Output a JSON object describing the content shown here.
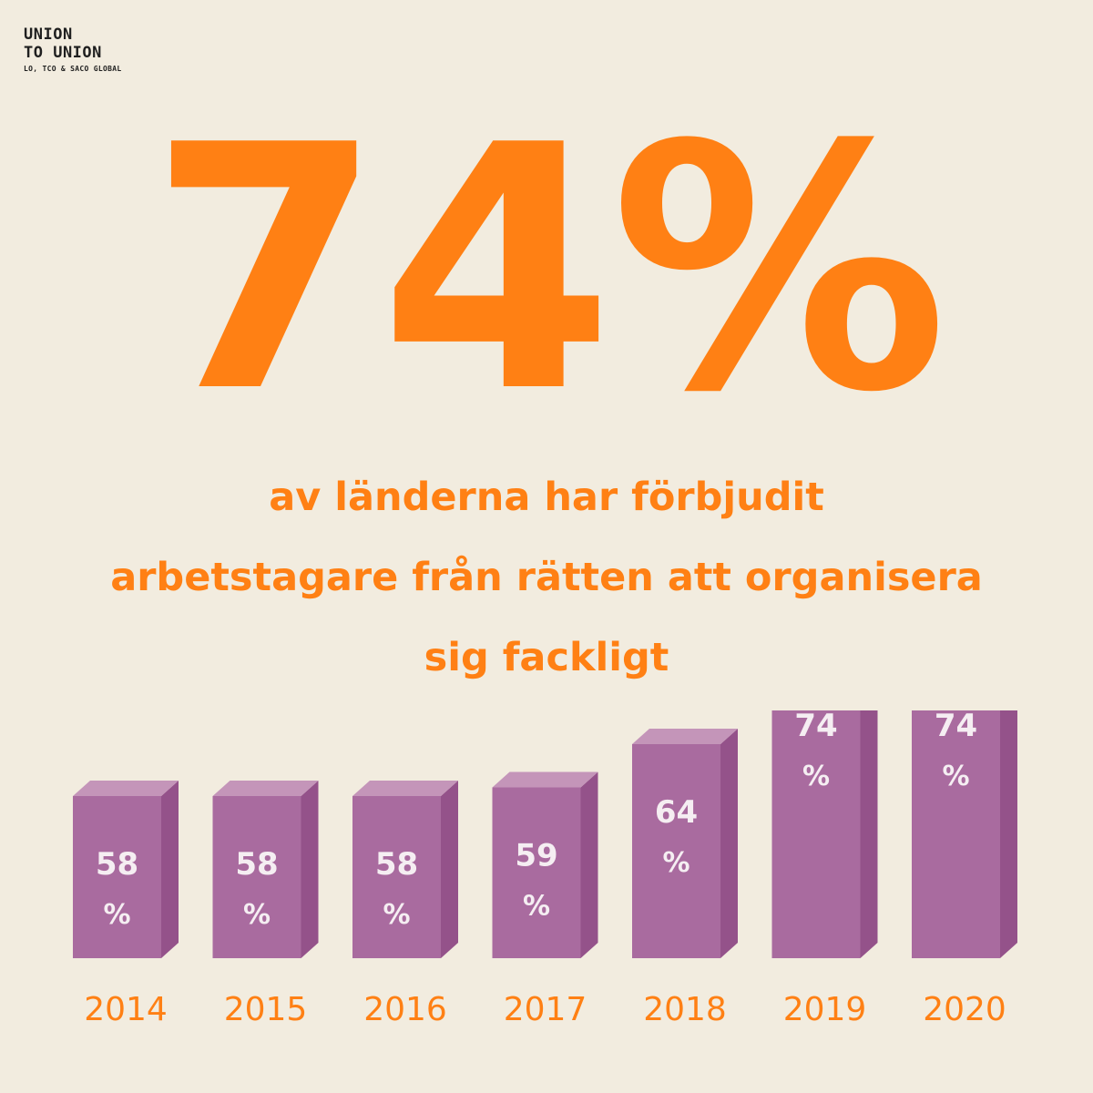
{
  "logo": {
    "line1": "UNION",
    "line2": "TO UNION",
    "sub": "LO, TCO & SACO GLOBAL"
  },
  "headline": "74%",
  "subtitle": {
    "lines": [
      "av länderna har förbjudit",
      "arbetstagare från rätten att organisera",
      "sig fackligt"
    ]
  },
  "colors": {
    "background": "#f2ecdf",
    "accent": "#ff8014",
    "bar_front": "#a96b9f",
    "bar_top": "#c495b9",
    "bar_side": "#94528a",
    "bar_label": "#f5eef2",
    "logo_text": "#1f1f1f"
  },
  "chart_data": {
    "type": "bar",
    "categories": [
      "2014",
      "2015",
      "2016",
      "2017",
      "2018",
      "2019",
      "2020"
    ],
    "values": [
      58,
      58,
      58,
      59,
      64,
      74,
      74
    ],
    "value_suffix": "%",
    "title": "",
    "xlabel": "",
    "ylabel": "",
    "style": "3d",
    "grid": false
  }
}
